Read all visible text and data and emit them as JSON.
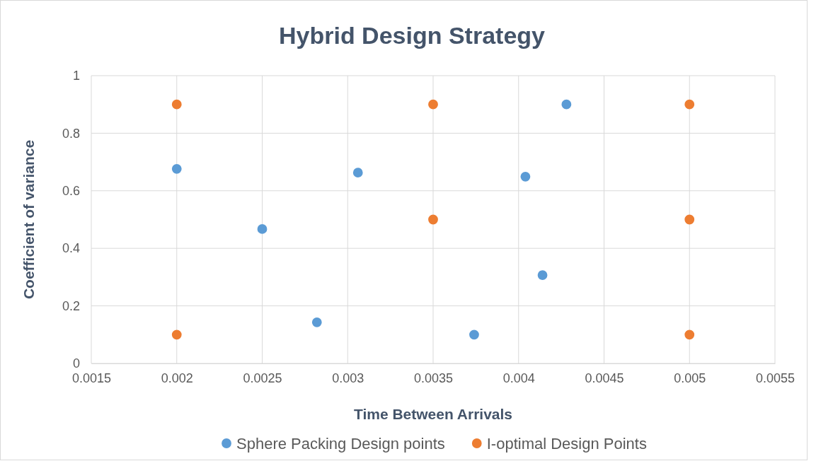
{
  "chart_data": {
    "type": "scatter",
    "title": "Hybrid Design Strategy",
    "xlabel": "Time Between Arrivals",
    "ylabel": "Coefficient of variance",
    "xlim": [
      0.0015,
      0.0055
    ],
    "xticks": [
      0.0015,
      0.002,
      0.0025,
      0.003,
      0.0035,
      0.004,
      0.0045,
      0.005,
      0.0055
    ],
    "ylim": [
      0,
      1
    ],
    "yticks": [
      0,
      0.2,
      0.4,
      0.6,
      0.8,
      1
    ],
    "grid": true,
    "legend": "bottom",
    "marker": "circle",
    "series": [
      {
        "name": "Sphere Packing Design points",
        "color": "#5b9bd5",
        "x": [
          0.002,
          0.0025,
          0.00282,
          0.00306,
          0.00374,
          0.00404,
          0.00414,
          0.00428
        ],
        "values": [
          0.676,
          0.467,
          0.143,
          0.663,
          0.1,
          0.649,
          0.307,
          0.9
        ]
      },
      {
        "name": "I-optimal Design Points",
        "color": "#ed7d31",
        "x": [
          0.002,
          0.002,
          0.0035,
          0.0035,
          0.005,
          0.005,
          0.005
        ],
        "values": [
          0.9,
          0.1,
          0.9,
          0.5,
          0.9,
          0.5,
          0.1
        ]
      }
    ]
  }
}
